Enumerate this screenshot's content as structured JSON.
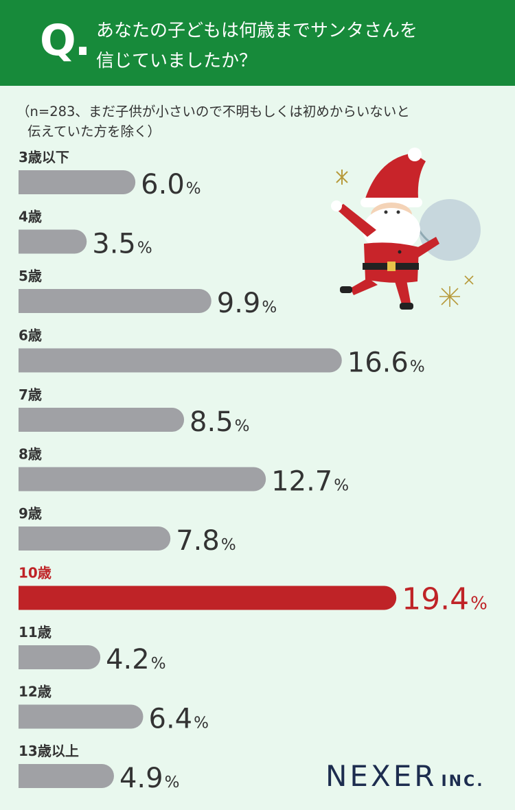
{
  "header": {
    "q_mark": "Q.",
    "question_line1": "あなたの子どもは何歳までサンタさんを",
    "question_line2": "信じていましたか？"
  },
  "note": {
    "line1": "（n=283、まだ子供が小さいので不明もしくは初めからいないと",
    "line2": "伝えていた方を除く）"
  },
  "logo": {
    "main": "NEXER",
    "sub": "INC."
  },
  "colors": {
    "header_bg": "#178a3a",
    "background": "#e9f8ee",
    "bar": "#a0a1a5",
    "highlight": "#bf2327",
    "text": "#333333"
  },
  "illustration": "santa-claus-with-sack",
  "chart_data": {
    "type": "bar",
    "orientation": "horizontal",
    "unit": "%",
    "categories": [
      "3歳以下",
      "4歳",
      "5歳",
      "6歳",
      "7歳",
      "8歳",
      "9歳",
      "10歳",
      "11歳",
      "12歳",
      "13歳以上"
    ],
    "values": [
      6.0,
      3.5,
      9.9,
      16.6,
      8.5,
      12.7,
      7.8,
      19.4,
      4.2,
      6.4,
      4.9
    ],
    "value_labels": [
      "6.0",
      "3.5",
      "9.9",
      "16.6",
      "8.5",
      "12.7",
      "7.8",
      "19.4",
      "4.2",
      "6.4",
      "4.9"
    ],
    "highlight_index": 7,
    "title": "",
    "xlabel": "",
    "ylabel": ""
  }
}
